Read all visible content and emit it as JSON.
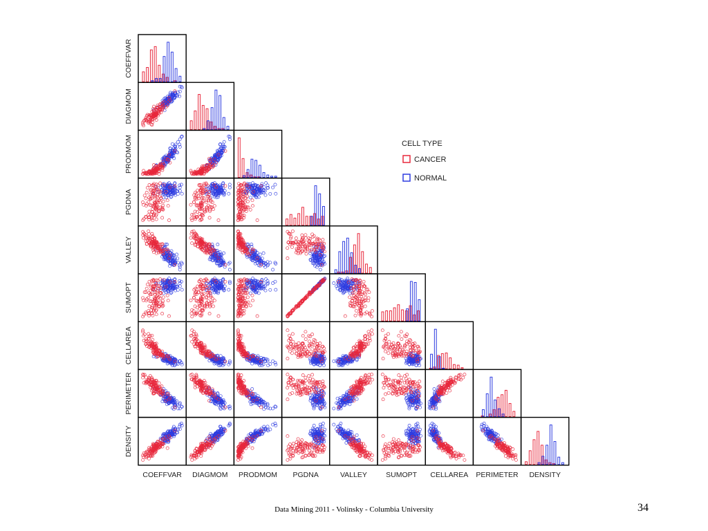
{
  "slide": {
    "footer": "Data Mining 2011  - Volinsky - Columbia University",
    "page_number": "34"
  },
  "chart_data": {
    "type": "scatter",
    "variables": [
      "COEFFVAR",
      "DIAGMOM",
      "PRODMOM",
      "PGDNA",
      "VALLEY",
      "SUMOPT",
      "CELLAREA",
      "PERIMETER",
      "DENSITY"
    ],
    "legend": {
      "title": "CELL TYPE",
      "placement": "right",
      "entries": [
        {
          "label": "CANCER",
          "color": "#e8283c"
        },
        {
          "label": "NORMAL",
          "color": "#2d3ce0"
        }
      ]
    },
    "series": [
      {
        "name": "CANCER",
        "color": "#e8283c"
      },
      {
        "name": "NORMAL",
        "color": "#2d3ce0"
      }
    ],
    "layout": "lower-triangle scatterplot matrix with per-variable histograms on the diagonal",
    "grid": false,
    "tick_labels": false
  }
}
